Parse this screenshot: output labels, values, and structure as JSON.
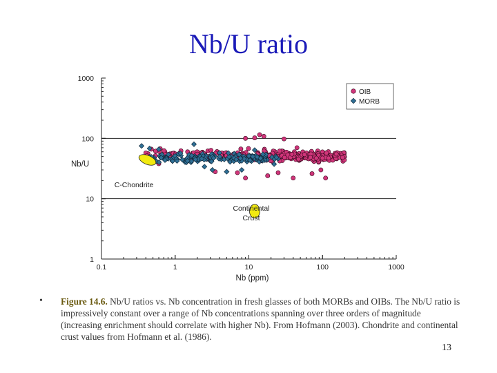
{
  "slide": {
    "title": "Nb/U ratio",
    "bullet": "•",
    "caption_fig": "Figure 14.6.",
    "caption_text": " Nb/U ratios vs. Nb concentration in fresh glasses of both MORBs and OIBs. The Nb/U ratio is impressively constant over a range of Nb concentrations spanning over three orders of magnitude (increasing enrichment should correlate with higher Nb). From Hofmann (2003). Chondrite and continental crust values from Hofmann et al. (1986).",
    "page_number": "13"
  },
  "colors": {
    "title": "#1a1ab8",
    "oib": "#d0357a",
    "morb": "#2f6f95",
    "reference": "#f2ea10"
  },
  "chart_data": {
    "type": "scatter",
    "xscale": "log",
    "yscale": "log",
    "xlim": [
      0.1,
      1000
    ],
    "ylim": [
      1,
      1000
    ],
    "xlabel": "Nb (ppm)",
    "ylabel": "Nb/U",
    "xticks": [
      "0.1",
      "1",
      "10",
      "100",
      "1000"
    ],
    "yticks": [
      "1",
      "10",
      "100",
      "1000"
    ],
    "reference_lines": [
      {
        "y": 100
      },
      {
        "y": 10
      }
    ],
    "legend_position": "top-right",
    "series": [
      {
        "name": "OIB",
        "marker": "circle"
      },
      {
        "name": "MORB",
        "marker": "diamond"
      }
    ],
    "annotations": [
      {
        "label": "C-Chondrite",
        "x": 0.42,
        "y": 44
      },
      {
        "label": "Continental Crust",
        "x": 12,
        "y": 6.2
      }
    ]
  }
}
